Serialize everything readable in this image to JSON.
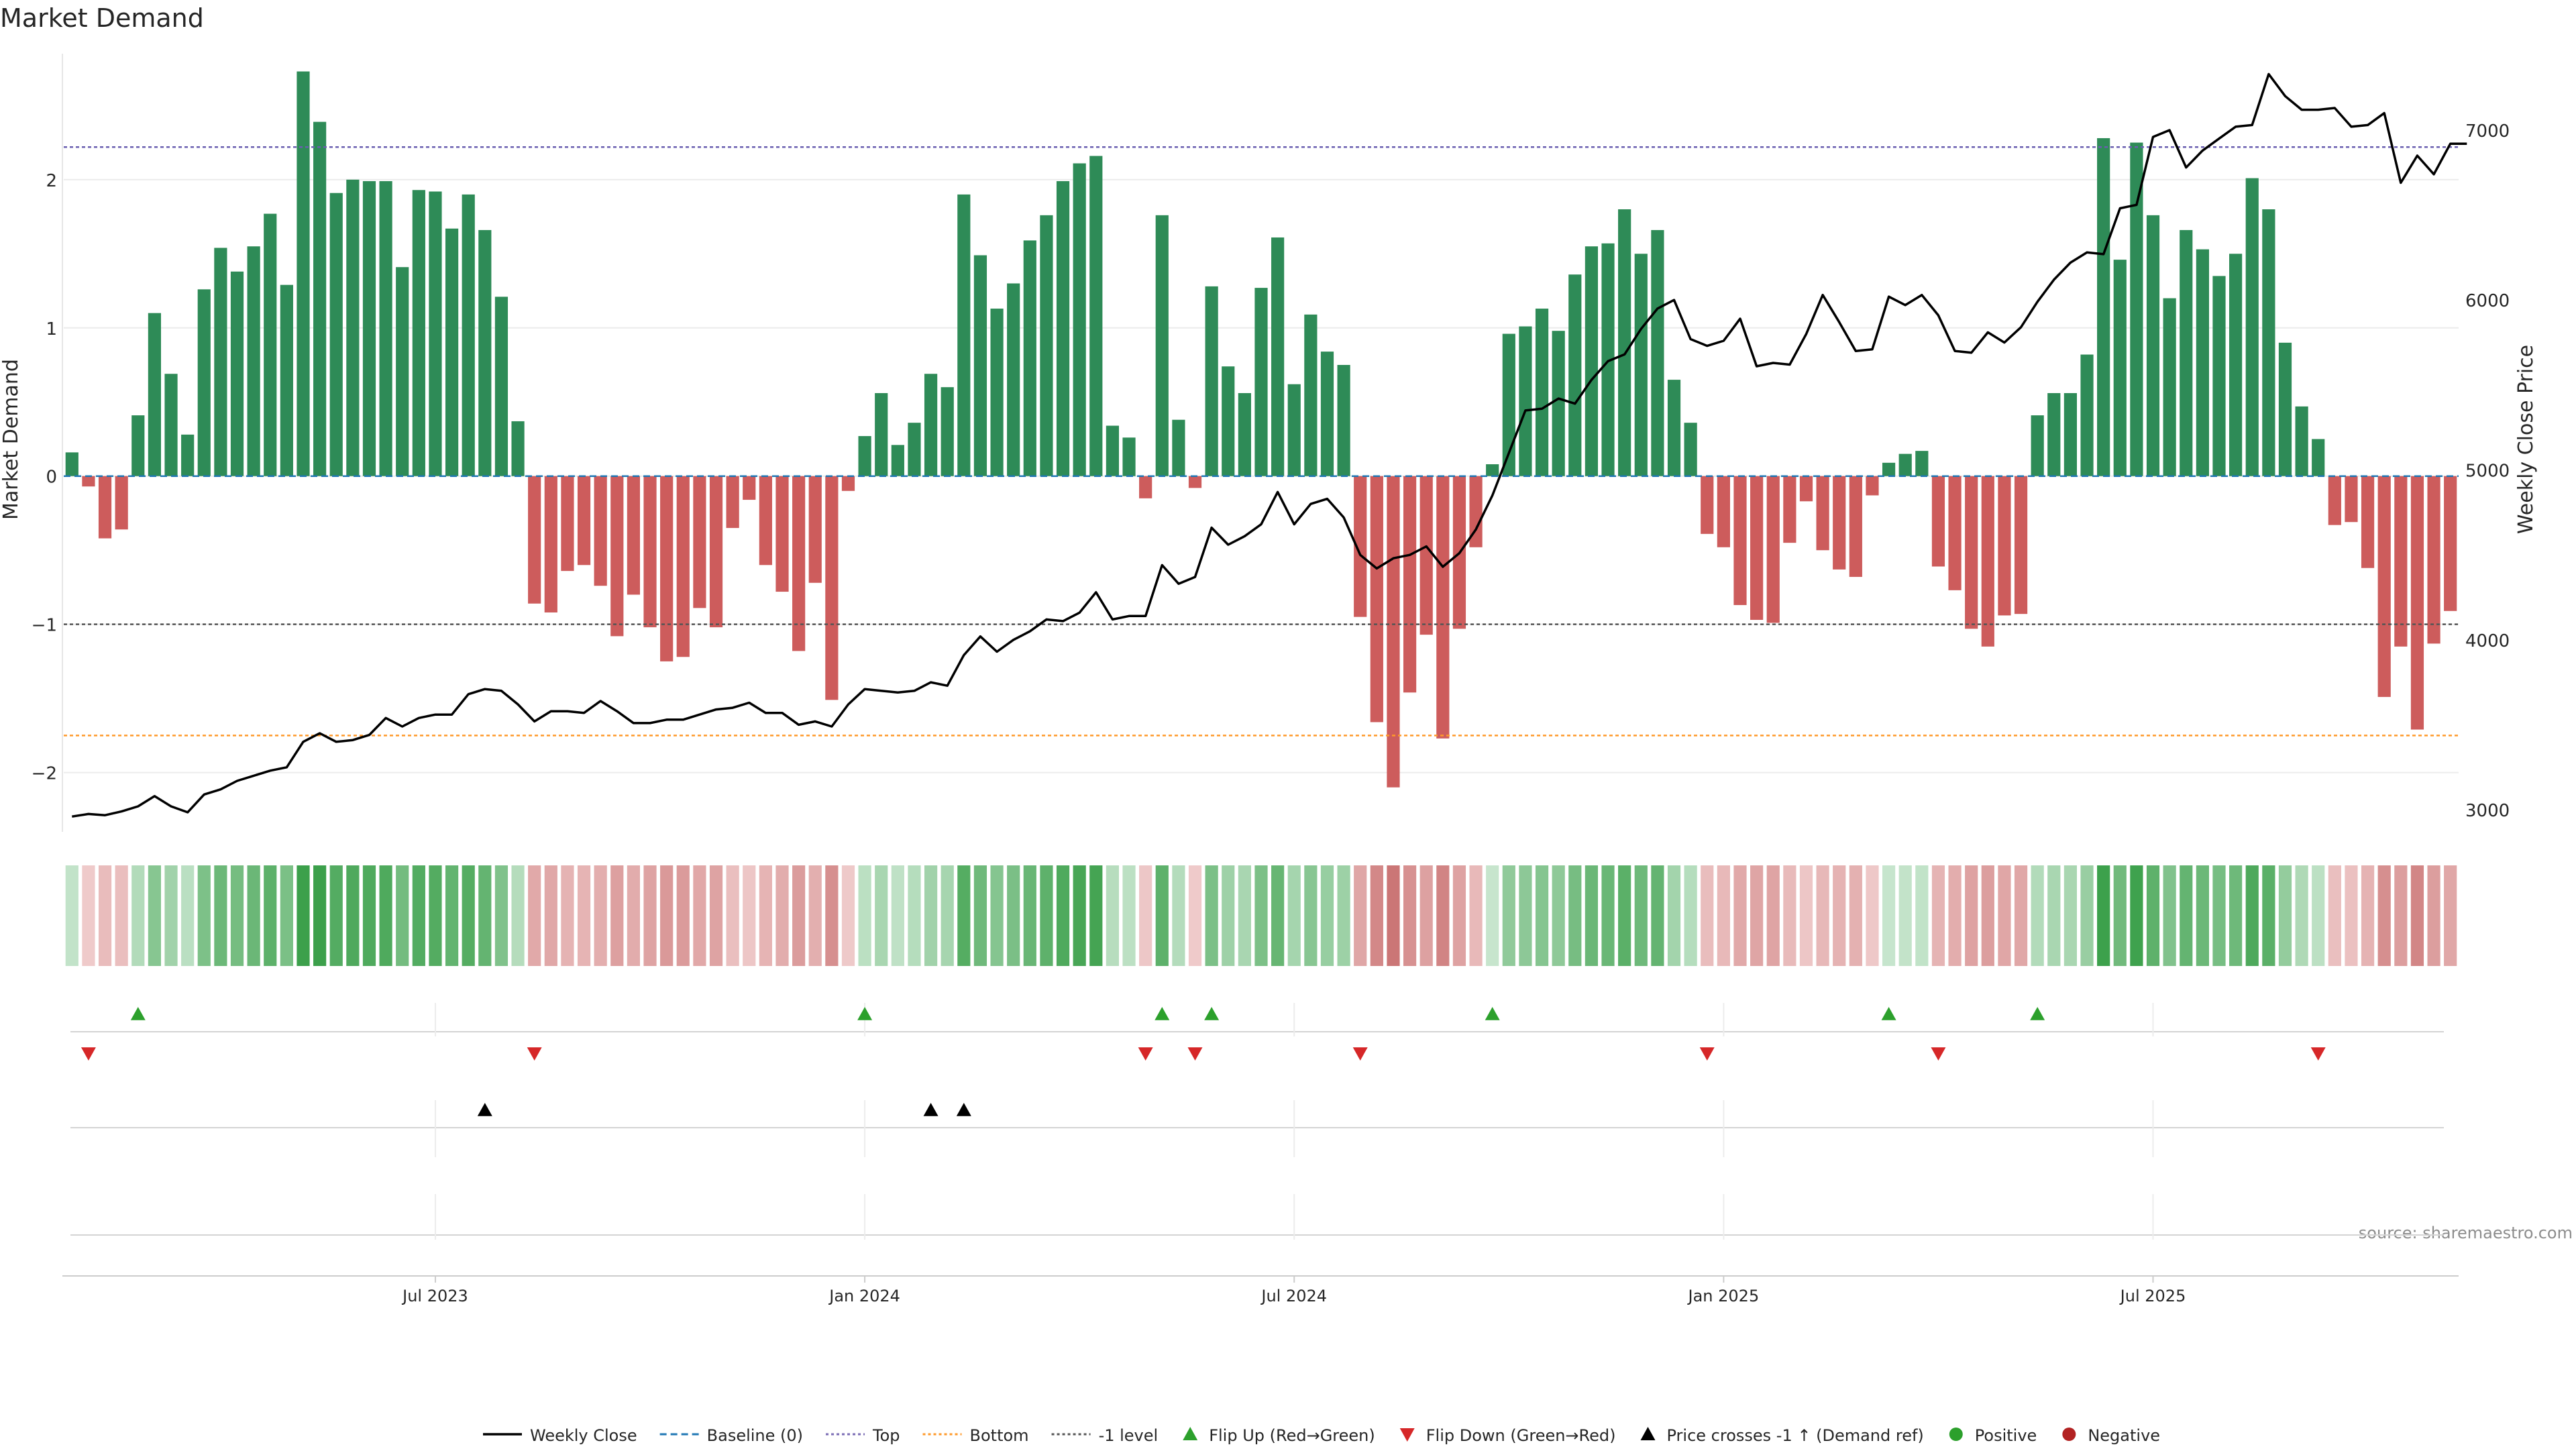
{
  "chart_data": {
    "type": "bar",
    "title": "Market Demand",
    "ylabel": "Market Demand",
    "y2label": "Weekly Close Price",
    "ylim": [
      -2.4,
      2.85
    ],
    "y2lim": [
      2870,
      7450
    ],
    "y_ticks": [
      -2,
      -1,
      0,
      1,
      2
    ],
    "y2_ticks": [
      3000,
      4000,
      5000,
      6000,
      7000
    ],
    "y_tick_labels": [
      "−2",
      "−1",
      "0",
      "1",
      "2"
    ],
    "y2_tick_labels": [
      "3000",
      "4000",
      "5000",
      "6000",
      "7000"
    ],
    "x_tick_labels": [
      {
        "label": "Jul 2023",
        "week": 22
      },
      {
        "label": "Jan 2024",
        "week": 48
      },
      {
        "label": "Jul 2024",
        "week": 74
      },
      {
        "label": "Jan 2025",
        "week": 100
      },
      {
        "label": "Jul 2025",
        "week": 126
      }
    ],
    "reference_lines": {
      "top": 2.22,
      "bottom": -1.75,
      "minus_one": -1,
      "baseline": 0
    },
    "series": [
      {
        "name": "Market Demand",
        "values": [
          0.16,
          -0.07,
          -0.42,
          -0.36,
          0.41,
          1.1,
          0.69,
          0.28,
          1.26,
          1.54,
          1.38,
          1.55,
          1.77,
          1.29,
          2.73,
          2.39,
          1.91,
          2.0,
          1.99,
          1.99,
          1.41,
          1.93,
          1.92,
          1.67,
          1.9,
          1.66,
          1.21,
          0.37,
          -0.86,
          -0.92,
          -0.64,
          -0.6,
          -0.74,
          -1.08,
          -0.8,
          -1.02,
          -1.25,
          -1.22,
          -0.89,
          -1.02,
          -0.35,
          -0.16,
          -0.6,
          -0.78,
          -1.18,
          -0.72,
          -1.51,
          -0.1,
          0.27,
          0.56,
          0.21,
          0.36,
          0.69,
          0.6,
          1.9,
          1.49,
          1.13,
          1.3,
          1.59,
          1.76,
          1.99,
          2.11,
          2.16,
          0.34,
          0.26,
          -0.15,
          1.76,
          0.38,
          -0.08,
          1.28,
          0.74,
          0.56,
          1.27,
          1.61,
          0.62,
          1.09,
          0.84,
          0.75,
          -0.95,
          -1.66,
          -2.1,
          -1.46,
          -1.07,
          -1.77,
          -1.03,
          -0.48,
          0.08,
          0.96,
          1.01,
          1.13,
          0.98,
          1.36,
          1.55,
          1.57,
          1.8,
          1.5,
          1.66,
          0.65,
          0.36,
          -0.39,
          -0.48,
          -0.87,
          -0.97,
          -0.99,
          -0.45,
          -0.17,
          -0.5,
          -0.63,
          -0.68,
          -0.13,
          0.09,
          0.15,
          0.17,
          -0.61,
          -0.77,
          -1.03,
          -1.15,
          -0.94,
          -0.93,
          0.41,
          0.56,
          0.56,
          0.82,
          2.28,
          1.46,
          2.25,
          1.76,
          1.2,
          1.66,
          1.53,
          1.35,
          1.5,
          2.01,
          1.8,
          0.9,
          0.47,
          0.25,
          -0.33,
          -0.31,
          -0.62,
          -1.49,
          -1.15,
          -1.71,
          -1.13,
          -0.91
        ]
      },
      {
        "name": "Weekly Close",
        "values": [
          2960,
          2975,
          2968,
          2990,
          3020,
          3080,
          3020,
          2985,
          3090,
          3120,
          3170,
          3200,
          3230,
          3250,
          3400,
          3450,
          3400,
          3410,
          3440,
          3540,
          3490,
          3540,
          3560,
          3560,
          3680,
          3710,
          3700,
          3620,
          3520,
          3580,
          3580,
          3570,
          3640,
          3580,
          3510,
          3510,
          3530,
          3530,
          3560,
          3590,
          3600,
          3630,
          3570,
          3570,
          3500,
          3520,
          3490,
          3620,
          3710,
          3700,
          3690,
          3700,
          3750,
          3730,
          3910,
          4020,
          3930,
          4000,
          4050,
          4120,
          4110,
          4160,
          4280,
          4120,
          4140,
          4140,
          4440,
          4330,
          4370,
          4660,
          4560,
          4610,
          4680,
          4870,
          4680,
          4800,
          4830,
          4720,
          4500,
          4420,
          4480,
          4500,
          4550,
          4430,
          4510,
          4650,
          4850,
          5100,
          5350,
          5360,
          5420,
          5390,
          5530,
          5640,
          5680,
          5830,
          5950,
          6000,
          5770,
          5730,
          5760,
          5890,
          5610,
          5630,
          5620,
          5800,
          6030,
          5870,
          5700,
          5710,
          6020,
          5970,
          6030,
          5910,
          5700,
          5690,
          5810,
          5750,
          5840,
          5990,
          6120,
          6220,
          6280,
          6270,
          6540,
          6560,
          6960,
          7000,
          6780,
          6880,
          6950,
          7020,
          7030,
          7330,
          7200,
          7120,
          7120,
          7130,
          7020,
          7030,
          7100,
          6690,
          6850,
          6740,
          6920,
          6920
        ]
      }
    ],
    "flip_up_weeks": [
      4,
      48,
      66,
      69,
      86,
      110,
      119
    ],
    "flip_down_weeks": [
      1,
      28,
      65,
      68,
      78,
      99,
      113,
      136
    ],
    "price_cross_weeks": [
      25,
      52,
      54
    ],
    "legend": [
      {
        "label": "Weekly Close",
        "kind": "line",
        "color": "#000000"
      },
      {
        "label": "Baseline (0)",
        "kind": "dashed",
        "color": "#1f77b4"
      },
      {
        "label": "Top",
        "kind": "dotted",
        "color": "#7b6db5"
      },
      {
        "label": "Bottom",
        "kind": "dotted",
        "color": "#ff9a2a"
      },
      {
        "label": "-1 level",
        "kind": "dotted",
        "color": "#555555"
      },
      {
        "label": "Flip Up (Red→Green)",
        "kind": "triangle-up",
        "color": "#2ca02c"
      },
      {
        "label": "Flip Down (Green→Red)",
        "kind": "triangle-down",
        "color": "#d62728"
      },
      {
        "label": "Price crosses -1 ↑ (Demand ref)",
        "kind": "triangle-up",
        "color": "#000000"
      },
      {
        "label": "Positive",
        "kind": "dot",
        "color": "#2ca02c"
      },
      {
        "label": "Negative",
        "kind": "dot",
        "color": "#b22222"
      }
    ],
    "colors": {
      "positive": "#2e8b57",
      "negative": "#cd5c5c"
    },
    "source": "source: sharemaestro.com"
  }
}
